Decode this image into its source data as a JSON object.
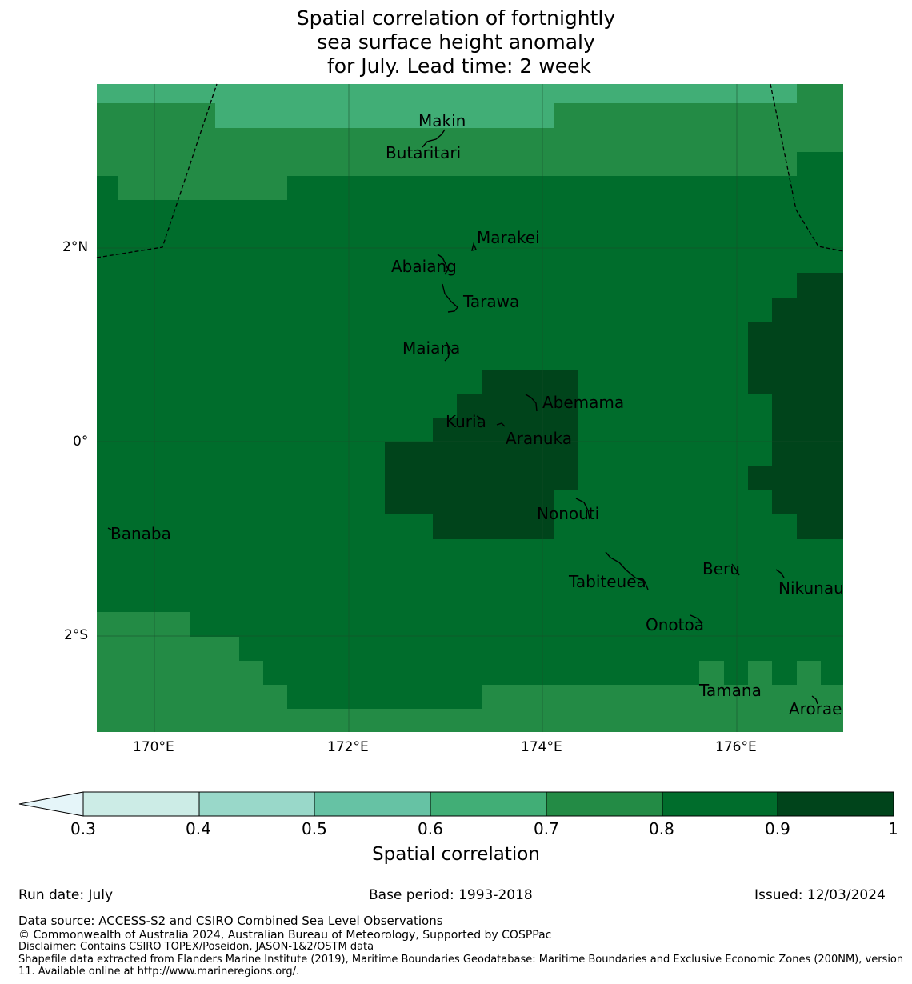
{
  "title_lines": [
    "Spatial correlation of fortnightly",
    "sea surface height anomaly",
    " for July. Lead time: 2 week"
  ],
  "map": {
    "lon_ticks": [
      "170°E",
      "172°E",
      "174°E",
      "176°E"
    ],
    "lat_ticks": [
      "2°N",
      "0°",
      "2°S"
    ],
    "lon_range": [
      169.4,
      177.1
    ],
    "lat_range": [
      -3.0,
      3.7
    ],
    "places": [
      "Makin",
      "Butaritari",
      "Marakei",
      "Abaiang",
      "Tarawa",
      "Maiana",
      "Abemama",
      "Kuria",
      "Aranuka",
      "Nonouti",
      "Banaba",
      "Beru",
      "Nikunau",
      "Tabiteuea",
      "Onotoa",
      "Tamana",
      "Arorae"
    ]
  },
  "colorbar": {
    "label": "Spatial correlation",
    "ticks": [
      "0.3",
      "0.4",
      "0.5",
      "0.6",
      "0.7",
      "0.8",
      "0.9",
      "1"
    ],
    "colors": [
      "#ccece6",
      "#99d8c9",
      "#66c2a4",
      "#41ae76",
      "#238b45",
      "#006d2c",
      "#00441b"
    ],
    "extend_color": "#e5f5f9"
  },
  "footer": {
    "run_date": "Run date: July",
    "base_period": "Base period: 1993-2018",
    "issued": "Issued: 12/03/2024",
    "data_source": "Data source: ACCESS-S2 and CSIRO Combined Sea Level Observations",
    "copyright": "© Commonwealth of Australia 2024, Australian Bureau of Meteorology, Supported by COSPPac",
    "disclaimer": "Disclaimer: Contains CSIRO TOPEX/Poseidon, JASON-1&2/OSTM data",
    "shapefile": "Shapefile data extracted from Flanders Marine Institute (2019), Maritime Boundaries Geodatabase: Maritime Boundaries and Exclusive Economic Zones (200NM), version 11. Available online at http://www.marineregions.org/."
  }
}
